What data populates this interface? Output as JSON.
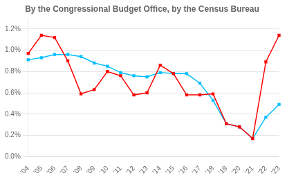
{
  "chart_data": {
    "type": "line",
    "title": "By the Congressional Budget Office, by the Census Bureau",
    "categories": [
      "'04",
      "'05",
      "'06",
      "'07",
      "'08",
      "'09",
      "'10",
      "'11",
      "'12",
      "'13",
      "'14",
      "'15",
      "'16",
      "'17",
      "'18",
      "'19",
      "'20",
      "'21",
      "'22",
      "'23"
    ],
    "series": [
      {
        "color": "#00bfff",
        "marker": "square",
        "values": [
          0.0091,
          0.0093,
          0.0096,
          0.0096,
          0.0094,
          0.0088,
          0.0085,
          0.0079,
          0.0076,
          0.0075,
          0.0079,
          0.0078,
          0.0078,
          0.0069,
          0.0053,
          0.0031,
          0.0028,
          0.0017,
          0.0037,
          0.0049
        ]
      },
      {
        "color": "#ff0000",
        "marker": "square",
        "values": [
          0.0097,
          0.0114,
          0.0112,
          0.009,
          0.0059,
          0.0063,
          0.008,
          0.0076,
          0.0058,
          0.006,
          0.0086,
          0.0078,
          0.0058,
          0.0058,
          0.0059,
          0.0031,
          0.0028,
          0.0017,
          0.0089,
          0.0114
        ]
      }
    ],
    "ylim": [
      0.0,
      0.013
    ],
    "yticks": [
      {
        "value": 0.0,
        "label": "0.0%"
      },
      {
        "value": 0.002,
        "label": "0.2%"
      },
      {
        "value": 0.004,
        "label": "0.4%"
      },
      {
        "value": 0.006,
        "label": "0.6%"
      },
      {
        "value": 0.008,
        "label": "0.8%"
      },
      {
        "value": 0.01,
        "label": "1.0%"
      },
      {
        "value": 0.012,
        "label": "1.2%"
      }
    ],
    "grid": true,
    "legend": false
  }
}
